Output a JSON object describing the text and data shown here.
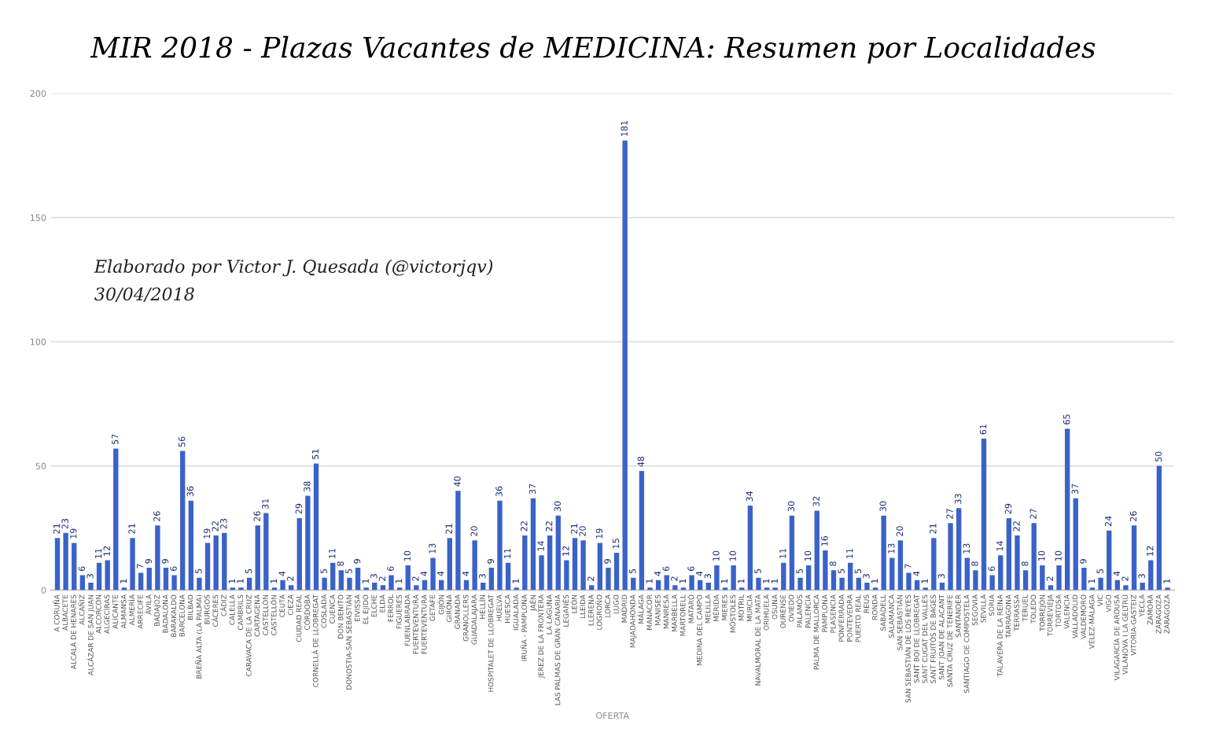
{
  "chart_data": {
    "type": "bar",
    "title": "MIR 2018 - Plazas Vacantes de MEDICINA: Resumen por Localidades",
    "xlabel": "OFERTA",
    "annotations": [
      "Elaborado por Victor J. Quesada (@victorjqv)",
      "30/04/2018"
    ],
    "categories": [
      "A CORUÑA",
      "ALBACETE",
      "ALCALÁ DE HENARES",
      "ALCAÑIZ",
      "ALCÁZAR DE SAN JUAN",
      "ALCORCÓN",
      "ALGECIRAS",
      "ALICANTE",
      "ALMANSA",
      "ALMERÍA",
      "ARRECIFE",
      "ÁVILA",
      "BADAJOZ",
      "BADALONA",
      "BARAKALDO",
      "BARCELONA",
      "BILBAO",
      "BREÑA ALTA (LA PALMA)",
      "BURGOS",
      "CÁCERES",
      "CÁDIZ",
      "CALELLA",
      "CAMBRILS",
      "CARAVACA DE LA CRUZ",
      "CARTAGENA",
      "CASTELLÓN",
      "CASTELLÓN",
      "CEUTA",
      "CIEZA",
      "CIUDAD REAL",
      "CÓRDOBA",
      "CORNELLÀ DE LLOBREGAT",
      "COSLADA",
      "CUENCA",
      "DON BENITO",
      "DONOSTIA-SAN SEBASTIÁN",
      "EIVISSA",
      "EL EJIDO",
      "ELCHE",
      "ELDA",
      "FERROL",
      "FIGUERES",
      "FUENLABRADA",
      "FUERTEVENTURA",
      "FUERTEVENTURA",
      "GETAFE",
      "GIJÓN",
      "GIRONA",
      "GRANADA",
      "GRANOLLERS",
      "GUADALAJARA",
      "HELLÍN",
      "HOSPITALET DE LLOBREGAT",
      "HUELVA",
      "HUESCA",
      "IGUALADA",
      "IRUÑA - PAMPLONA",
      "JAÉN",
      "JEREZ DE LA FRONTERA",
      "LA LAGUNA",
      "LAS PALMAS DE GRAN CANARIA",
      "LEGANÉS",
      "LEÓN",
      "LLEIDA",
      "LLERENA",
      "LOGROÑO",
      "LORCA",
      "LUGO",
      "MADRID",
      "MAJADAHONDA",
      "MÁLAGA",
      "MANACOR",
      "MANISES",
      "MANRESA",
      "MARBELLA",
      "MARTORELL",
      "MATARÓ",
      "MEDINA DEL CAMPO",
      "MELILLA",
      "MÉRIDA",
      "MIERES",
      "MÓSTOLES",
      "MOTRIL",
      "MURCIA",
      "NAVALMORAL DE LA MATA",
      "ORIHUELA",
      "OSUNA",
      "OURENSE",
      "OVIEDO",
      "PALAMÓS",
      "PALENCIA",
      "PALMA DE MALLORCA",
      "PAMPLONA",
      "PLASENCIA",
      "PONFERRADA",
      "PONTEVEDRA",
      "PUERTO REAL",
      "REUS",
      "RONDA",
      "SABADELL",
      "SALAMANCA",
      "SAN SEBASTIÁN",
      "SAN SEBASTIÁN DE LOS REYES",
      "SANT BOI DE LLOBREGAT",
      "SANT CUGAT DEL VALLÈS",
      "SANT FRUITÓS DE BAGES",
      "SANT JOAN DE ALACANT",
      "SANTA CRUZ DE TENERIFE",
      "SANTANDER",
      "SANTIAGO DE COMPOSTELA",
      "SEGOVIA",
      "SEVILLA",
      "SORIA",
      "TALAVERA DE LA REINA",
      "TARRAGONA",
      "TERRASSA",
      "TERUEL",
      "TOLEDO",
      "TORREJÓN",
      "TORREVIEJA",
      "TORTOSA",
      "VALENCIA",
      "VALLADOLID",
      "VALDEMORO",
      "VÉLEZ-MÁLAGA",
      "VIC",
      "VIGO",
      "VILAGARCÍA DE AROUSA",
      "VILANOVA I LA GELTRÚ",
      "VITORIA-GASTEIZ",
      "YECLA",
      "ZAMORA",
      "ZARAGOZA",
      "ZARAGOZA"
    ],
    "values": [
      21,
      23,
      19,
      6,
      3,
      11,
      12,
      57,
      1,
      21,
      7,
      9,
      26,
      9,
      6,
      56,
      36,
      5,
      19,
      22,
      23,
      1,
      1,
      5,
      26,
      31,
      1,
      4,
      2,
      29,
      38,
      51,
      5,
      11,
      8,
      5,
      9,
      1,
      3,
      2,
      6,
      1,
      10,
      2,
      4,
      13,
      4,
      21,
      40,
      4,
      20,
      3,
      9,
      36,
      11,
      1,
      22,
      37,
      14,
      22,
      30,
      12,
      21,
      20,
      2,
      19,
      9,
      15,
      181,
      5,
      48,
      1,
      4,
      6,
      2,
      1,
      6,
      4,
      3,
      10,
      1,
      10,
      1,
      34,
      5,
      1,
      1,
      11,
      30,
      5,
      10,
      32,
      16,
      8,
      5,
      11,
      5,
      3,
      1,
      30,
      13,
      20,
      7,
      4,
      1,
      21,
      3,
      27,
      33,
      13,
      8,
      61,
      6,
      14,
      29,
      22,
      8,
      27,
      10,
      2,
      10,
      65,
      37,
      9,
      1,
      5,
      24,
      4,
      2,
      26,
      3,
      12,
      50,
      1
    ],
    "color": "#3a62c9",
    "data_labels": true,
    "ylim": [
      0,
      200
    ],
    "yticks": [
      0,
      50,
      100,
      150,
      200
    ],
    "grid": "y"
  }
}
